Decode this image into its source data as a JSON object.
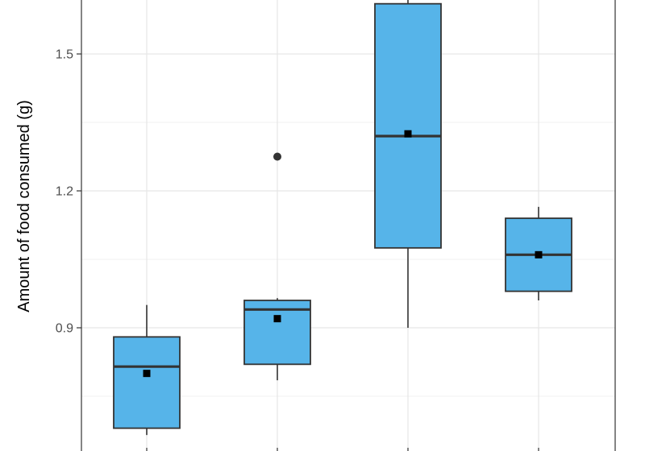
{
  "chart_data": {
    "type": "box",
    "title": "",
    "xlabel": "",
    "ylabel": "Amount of food consumed (g)",
    "categories": [
      "",
      "",
      "",
      ""
    ],
    "ylim": [
      0.655,
      1.665
    ],
    "y_ticks": [
      0.9,
      1.2,
      1.5
    ],
    "y_tick_labels": [
      "0.9",
      "1.2",
      "1.5"
    ],
    "grid": true,
    "legend": "none",
    "box_color": "#56B4E9",
    "outline_color": "#333333",
    "boxes": [
      {
        "lower_whisker": 0.665,
        "q1": 0.68,
        "median": 0.815,
        "q3": 0.88,
        "upper_whisker": 0.95,
        "mean": 0.8,
        "outliers": []
      },
      {
        "lower_whisker": 0.785,
        "q1": 0.82,
        "median": 0.94,
        "q3": 0.96,
        "upper_whisker": 0.965,
        "mean": 0.92,
        "outliers": [
          1.275
        ]
      },
      {
        "lower_whisker": 0.9,
        "q1": 1.075,
        "median": 1.32,
        "q3": 1.61,
        "upper_whisker": 1.665,
        "mean": 1.325,
        "outliers": []
      },
      {
        "lower_whisker": 0.96,
        "q1": 0.98,
        "median": 1.06,
        "q3": 1.14,
        "upper_whisker": 1.165,
        "mean": 1.06,
        "outliers": []
      }
    ]
  }
}
